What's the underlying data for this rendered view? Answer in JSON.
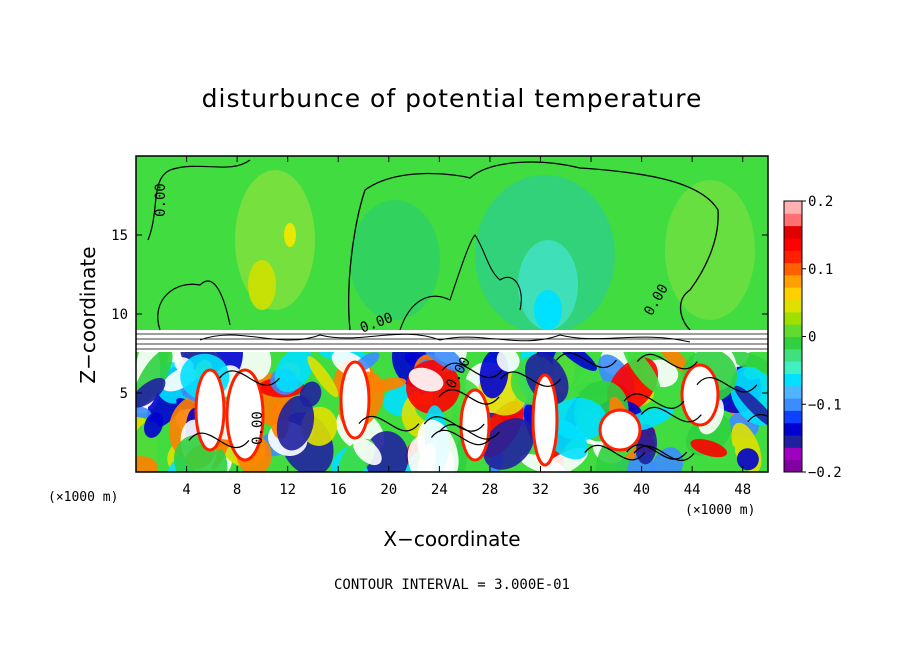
{
  "chart_data": {
    "type": "heatmap",
    "title": "disturbunce of potential temperature",
    "xlabel": "X−coordinate",
    "ylabel": "Z−coordinate",
    "x_unit_label": "(×1000 m)",
    "y_unit_label": "(×1000 m)",
    "xlim": [
      0,
      50
    ],
    "ylim": [
      0,
      20
    ],
    "x_ticks": [
      4,
      8,
      12,
      16,
      20,
      24,
      28,
      32,
      36,
      40,
      44,
      48
    ],
    "y_ticks": [
      5,
      10,
      15
    ],
    "y_tick_labels": [
      "5",
      "10",
      "15"
    ],
    "colorbar": {
      "range": [
        -0.2,
        0.2
      ],
      "tick_values": [
        0.2,
        0.1,
        0,
        -0.1,
        -0.2
      ],
      "tick_labels": [
        "0.2",
        "0.1",
        "0",
        "−0.1",
        "−0.2"
      ],
      "colors": [
        "#8000a0",
        "#a000c0",
        "#2020a0",
        "#0000d0",
        "#1040ff",
        "#3c8cff",
        "#50b4ff",
        "#00e0ff",
        "#40f0c0",
        "#40e080",
        "#30d040",
        "#60dc30",
        "#a0e000",
        "#e0e000",
        "#ffd000",
        "#ffa000",
        "#ff6000",
        "#ff2000",
        "#ff0000",
        "#e00000",
        "#ff7070",
        "#ffb0b0"
      ]
    },
    "contour_labels": [
      "0.00",
      "0.00",
      "0.00",
      "0.00",
      "0.00"
    ],
    "contour_interval_text": "CONTOUR INTERVAL = 3.000E-01"
  }
}
